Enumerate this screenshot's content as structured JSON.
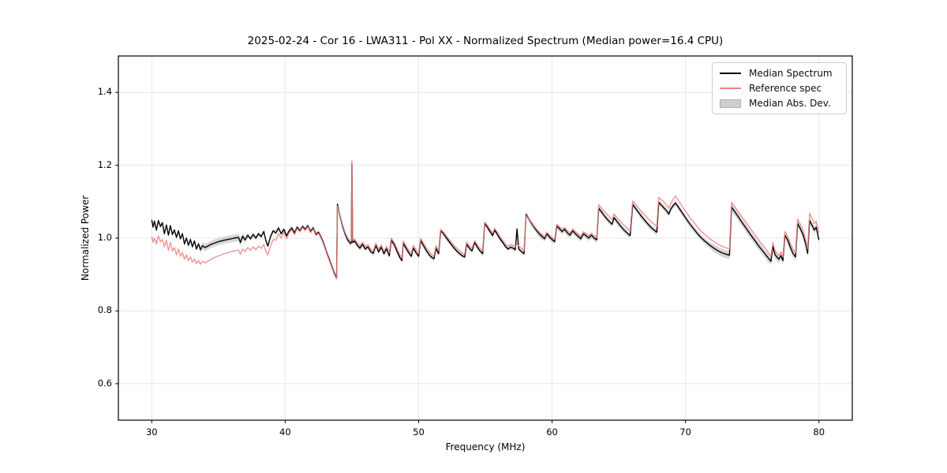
{
  "title": "2025-02-24 - Cor 16 - LWA311 - Pol XX - Normalized Spectrum (Median power=16.4 CPU)",
  "axes": {
    "xlabel": "Frequency (MHz)",
    "ylabel": "Normalized Power",
    "xlim": [
      27.5,
      82.5
    ],
    "ylim": [
      0.5,
      1.5
    ],
    "xticks": [
      {
        "v": 30,
        "label": "30"
      },
      {
        "v": 40,
        "label": "40"
      },
      {
        "v": 50,
        "label": "50"
      },
      {
        "v": 60,
        "label": "60"
      },
      {
        "v": 70,
        "label": "70"
      },
      {
        "v": 80,
        "label": "80"
      }
    ],
    "yticks": [
      {
        "v": 0.6,
        "label": "0.6"
      },
      {
        "v": 0.8,
        "label": "0.8"
      },
      {
        "v": 1.0,
        "label": "1.0"
      },
      {
        "v": 1.2,
        "label": "1.2"
      },
      {
        "v": 1.4,
        "label": "1.4"
      }
    ],
    "grid": true
  },
  "colors": {
    "background": "#ffffff",
    "grid": "#e7e7e7",
    "spine": "#000000",
    "median_line": "#000000",
    "reference_line": "#f08080",
    "band_fill": "#b0b0b0",
    "legend_patch_fill": "#cfcfcf",
    "legend_patch_edge": "#b0b0b0"
  },
  "legend": {
    "items": [
      {
        "label": "Median Spectrum",
        "type": "line",
        "color": "#000000"
      },
      {
        "label": "Reference spec",
        "type": "line",
        "color": "#f08080"
      },
      {
        "label": "Median Abs. Dev.",
        "type": "patch",
        "color": "#cfcfcf",
        "edge": "#b0b0b0"
      }
    ]
  },
  "chart_data": {
    "type": "line",
    "title": "2025-02-24 - Cor 16 - LWA311 - Pol XX - Normalized Spectrum (Median power=16.4 CPU)",
    "xlabel": "Frequency (MHz)",
    "ylabel": "Normalized Power",
    "xlim": [
      27.5,
      82.5
    ],
    "ylim": [
      0.5,
      1.5
    ],
    "grid": true,
    "legend_position": "upper right",
    "series_meta": [
      {
        "name": "Median Spectrum",
        "color": "#000000"
      },
      {
        "name": "Reference spec",
        "color": "#f08080"
      }
    ],
    "points_format": [
      "freq_mhz",
      "median_spectrum",
      "reference_spec"
    ],
    "points": [
      [
        30.0,
        1.05,
        1.005
      ],
      [
        30.1,
        1.03,
        0.988
      ],
      [
        30.2,
        1.046,
        1.0
      ],
      [
        30.35,
        1.022,
        0.984
      ],
      [
        30.5,
        1.048,
        1.006
      ],
      [
        30.65,
        1.032,
        0.99
      ],
      [
        30.8,
        1.042,
        0.996
      ],
      [
        30.95,
        1.012,
        0.976
      ],
      [
        31.1,
        1.036,
        0.994
      ],
      [
        31.25,
        1.008,
        0.966
      ],
      [
        31.4,
        1.034,
        0.988
      ],
      [
        31.55,
        1.01,
        0.964
      ],
      [
        31.7,
        1.022,
        0.974
      ],
      [
        31.85,
        1.002,
        0.954
      ],
      [
        32.0,
        1.02,
        0.97
      ],
      [
        32.15,
        0.998,
        0.95
      ],
      [
        32.3,
        1.012,
        0.96
      ],
      [
        32.45,
        0.984,
        0.942
      ],
      [
        32.6,
        1.0,
        0.954
      ],
      [
        32.75,
        0.98,
        0.938
      ],
      [
        32.9,
        0.996,
        0.948
      ],
      [
        33.05,
        0.976,
        0.934
      ],
      [
        33.2,
        0.992,
        0.942
      ],
      [
        33.35,
        0.97,
        0.93
      ],
      [
        33.5,
        0.984,
        0.938
      ],
      [
        33.65,
        0.968,
        0.928
      ],
      [
        33.8,
        0.979,
        0.936
      ],
      [
        34.0,
        0.974,
        0.932
      ],
      [
        34.3,
        0.98,
        0.939
      ],
      [
        34.6,
        0.985,
        0.945
      ],
      [
        35.0,
        0.99,
        0.951
      ],
      [
        35.4,
        0.994,
        0.957
      ],
      [
        35.8,
        0.997,
        0.961
      ],
      [
        36.2,
        1.0,
        0.965
      ],
      [
        36.5,
        1.002,
        0.967
      ],
      [
        36.65,
        0.988,
        0.956
      ],
      [
        36.8,
        1.005,
        0.97
      ],
      [
        37.0,
        0.995,
        0.963
      ],
      [
        37.2,
        1.008,
        0.974
      ],
      [
        37.4,
        0.998,
        0.966
      ],
      [
        37.6,
        1.01,
        0.976
      ],
      [
        37.8,
        1.0,
        0.968
      ],
      [
        38.0,
        1.012,
        0.978
      ],
      [
        38.2,
        1.004,
        0.972
      ],
      [
        38.4,
        1.018,
        0.982
      ],
      [
        38.55,
        0.994,
        0.964
      ],
      [
        38.7,
        0.978,
        0.954
      ],
      [
        38.9,
        1.004,
        0.978
      ],
      [
        39.1,
        1.02,
        0.996
      ],
      [
        39.3,
        1.014,
        0.994
      ],
      [
        39.5,
        1.028,
        1.012
      ],
      [
        39.7,
        1.012,
        1.0
      ],
      [
        39.9,
        1.024,
        1.016
      ],
      [
        40.1,
        1.006,
        0.998
      ],
      [
        40.3,
        1.02,
        1.014
      ],
      [
        40.5,
        1.028,
        1.023
      ],
      [
        40.7,
        1.014,
        1.009
      ],
      [
        40.9,
        1.03,
        1.026
      ],
      [
        41.1,
        1.02,
        1.017
      ],
      [
        41.3,
        1.032,
        1.029
      ],
      [
        41.5,
        1.024,
        1.021
      ],
      [
        41.7,
        1.034,
        1.031
      ],
      [
        41.9,
        1.018,
        1.015
      ],
      [
        42.1,
        1.028,
        1.025
      ],
      [
        42.3,
        1.01,
        1.007
      ],
      [
        42.5,
        1.016,
        1.013
      ],
      [
        42.7,
        1.002,
        0.999
      ],
      [
        42.9,
        0.984,
        0.981
      ],
      [
        43.1,
        0.962,
        0.959
      ],
      [
        43.3,
        0.942,
        0.939
      ],
      [
        43.5,
        0.922,
        0.919
      ],
      [
        43.7,
        0.902,
        0.899
      ],
      [
        43.85,
        0.89,
        0.888
      ],
      [
        43.92,
        1.093,
        1.088
      ],
      [
        44.1,
        1.062,
        1.064
      ],
      [
        44.3,
        1.032,
        1.036
      ],
      [
        44.5,
        1.01,
        1.014
      ],
      [
        44.7,
        0.994,
        0.999
      ],
      [
        44.9,
        0.985,
        0.991
      ],
      [
        44.96,
        0.987,
        0.993
      ],
      [
        45.0,
        1.205,
        1.213
      ],
      [
        45.06,
        0.988,
        0.994
      ],
      [
        45.2,
        0.992,
        0.998
      ],
      [
        45.4,
        0.98,
        0.987
      ],
      [
        45.6,
        0.972,
        0.979
      ],
      [
        45.8,
        0.983,
        0.989
      ],
      [
        46.0,
        0.97,
        0.977
      ],
      [
        46.2,
        0.976,
        0.982
      ],
      [
        46.4,
        0.963,
        0.97
      ],
      [
        46.6,
        0.958,
        0.965
      ],
      [
        46.8,
        0.98,
        0.986
      ],
      [
        47.0,
        0.962,
        0.969
      ],
      [
        47.2,
        0.975,
        0.981
      ],
      [
        47.4,
        0.957,
        0.964
      ],
      [
        47.6,
        0.971,
        0.977
      ],
      [
        47.8,
        0.951,
        0.959
      ],
      [
        47.95,
        0.994,
        1.0
      ],
      [
        48.2,
        0.98,
        0.986
      ],
      [
        48.4,
        0.962,
        0.97
      ],
      [
        48.6,
        0.946,
        0.954
      ],
      [
        48.75,
        0.938,
        0.946
      ],
      [
        48.85,
        0.986,
        0.992
      ],
      [
        49.05,
        0.972,
        0.979
      ],
      [
        49.25,
        0.96,
        0.968
      ],
      [
        49.45,
        0.95,
        0.958
      ],
      [
        49.6,
        0.973,
        0.98
      ],
      [
        49.8,
        0.96,
        0.968
      ],
      [
        50.0,
        0.95,
        0.958
      ],
      [
        50.15,
        0.993,
        0.999
      ],
      [
        50.35,
        0.98,
        0.987
      ],
      [
        50.55,
        0.967,
        0.975
      ],
      [
        50.75,
        0.956,
        0.964
      ],
      [
        50.95,
        0.948,
        0.956
      ],
      [
        51.15,
        0.943,
        0.951
      ],
      [
        51.3,
        0.972,
        0.979
      ],
      [
        51.5,
        0.957,
        0.965
      ],
      [
        51.65,
        1.02,
        1.024
      ],
      [
        51.85,
        1.013,
        1.017
      ],
      [
        52.05,
        1.002,
        1.007
      ],
      [
        52.25,
        0.992,
        0.998
      ],
      [
        52.45,
        0.982,
        0.989
      ],
      [
        52.65,
        0.973,
        0.98
      ],
      [
        52.85,
        0.965,
        0.973
      ],
      [
        53.05,
        0.958,
        0.966
      ],
      [
        53.25,
        0.952,
        0.96
      ],
      [
        53.45,
        0.948,
        0.956
      ],
      [
        53.6,
        0.983,
        0.989
      ],
      [
        53.8,
        0.972,
        0.979
      ],
      [
        54.0,
        0.965,
        0.972
      ],
      [
        54.2,
        0.988,
        0.993
      ],
      [
        54.4,
        0.975,
        0.981
      ],
      [
        54.6,
        0.965,
        0.972
      ],
      [
        54.8,
        0.957,
        0.965
      ],
      [
        54.95,
        1.04,
        1.044
      ],
      [
        55.15,
        1.03,
        1.035
      ],
      [
        55.35,
        1.018,
        1.024
      ],
      [
        55.55,
        1.007,
        1.013
      ],
      [
        55.7,
        1.022,
        1.027
      ],
      [
        55.9,
        1.01,
        1.016
      ],
      [
        56.1,
        0.998,
        1.004
      ],
      [
        56.3,
        0.988,
        0.994
      ],
      [
        56.5,
        0.977,
        0.984
      ],
      [
        56.7,
        0.97,
        0.977
      ],
      [
        56.9,
        0.975,
        0.982
      ],
      [
        57.1,
        0.972,
        0.979
      ],
      [
        57.25,
        0.968,
        0.976
      ],
      [
        57.37,
        1.025,
        0.984
      ],
      [
        57.5,
        0.97,
        0.978
      ],
      [
        57.7,
        0.963,
        0.972
      ],
      [
        57.9,
        0.957,
        0.966
      ],
      [
        58.05,
        1.065,
        1.062
      ],
      [
        58.25,
        1.053,
        1.053
      ],
      [
        58.45,
        1.041,
        1.043
      ],
      [
        58.65,
        1.03,
        1.033
      ],
      [
        58.85,
        1.02,
        1.024
      ],
      [
        59.05,
        1.011,
        1.015
      ],
      [
        59.25,
        1.004,
        1.009
      ],
      [
        59.45,
        0.998,
        1.003
      ],
      [
        59.6,
        1.012,
        1.016
      ],
      [
        59.8,
        1.003,
        1.008
      ],
      [
        60.0,
        0.996,
        1.001
      ],
      [
        60.2,
        0.99,
        0.996
      ],
      [
        60.35,
        1.033,
        1.038
      ],
      [
        60.55,
        1.026,
        1.031
      ],
      [
        60.75,
        1.018,
        1.024
      ],
      [
        60.95,
        1.024,
        1.029
      ],
      [
        61.15,
        1.014,
        1.02
      ],
      [
        61.35,
        1.008,
        1.014
      ],
      [
        61.55,
        1.02,
        1.025
      ],
      [
        61.75,
        1.012,
        1.018
      ],
      [
        61.95,
        1.005,
        1.011
      ],
      [
        62.15,
        0.998,
        1.004
      ],
      [
        62.35,
        1.012,
        1.017
      ],
      [
        62.55,
        1.006,
        1.012
      ],
      [
        62.75,
        1.0,
        1.006
      ],
      [
        62.95,
        1.008,
        1.013
      ],
      [
        63.15,
        1.0,
        1.006
      ],
      [
        63.35,
        0.995,
        1.001
      ],
      [
        63.5,
        1.082,
        1.092
      ],
      [
        63.7,
        1.072,
        1.083
      ],
      [
        63.9,
        1.062,
        1.074
      ],
      [
        64.1,
        1.053,
        1.066
      ],
      [
        64.3,
        1.045,
        1.058
      ],
      [
        64.5,
        1.038,
        1.051
      ],
      [
        64.65,
        1.056,
        1.066
      ],
      [
        64.85,
        1.046,
        1.057
      ],
      [
        65.05,
        1.037,
        1.049
      ],
      [
        65.25,
        1.028,
        1.041
      ],
      [
        65.45,
        1.02,
        1.033
      ],
      [
        65.65,
        1.013,
        1.026
      ],
      [
        65.85,
        1.007,
        1.02
      ],
      [
        66.05,
        1.092,
        1.102
      ],
      [
        66.25,
        1.082,
        1.093
      ],
      [
        66.45,
        1.072,
        1.084
      ],
      [
        66.65,
        1.062,
        1.075
      ],
      [
        66.85,
        1.053,
        1.067
      ],
      [
        67.05,
        1.044,
        1.059
      ],
      [
        67.25,
        1.036,
        1.051
      ],
      [
        67.45,
        1.028,
        1.044
      ],
      [
        67.65,
        1.022,
        1.038
      ],
      [
        67.85,
        1.016,
        1.032
      ],
      [
        68.0,
        1.098,
        1.112
      ],
      [
        68.2,
        1.09,
        1.105
      ],
      [
        68.4,
        1.082,
        1.098
      ],
      [
        68.6,
        1.074,
        1.09
      ],
      [
        68.75,
        1.066,
        1.082
      ],
      [
        68.9,
        1.08,
        1.095
      ],
      [
        69.1,
        1.09,
        1.108
      ],
      [
        69.25,
        1.096,
        1.115
      ],
      [
        69.45,
        1.086,
        1.104
      ],
      [
        69.7,
        1.072,
        1.09
      ],
      [
        70.0,
        1.056,
        1.074
      ],
      [
        70.3,
        1.04,
        1.058
      ],
      [
        70.6,
        1.026,
        1.044
      ],
      [
        70.9,
        1.012,
        1.03
      ],
      [
        71.2,
        1.0,
        1.018
      ],
      [
        71.5,
        0.99,
        1.008
      ],
      [
        71.8,
        0.981,
        0.999
      ],
      [
        72.1,
        0.973,
        0.991
      ],
      [
        72.4,
        0.966,
        0.984
      ],
      [
        72.7,
        0.96,
        0.978
      ],
      [
        73.0,
        0.956,
        0.974
      ],
      [
        73.3,
        0.953,
        0.97
      ],
      [
        73.45,
        1.085,
        1.098
      ],
      [
        73.7,
        1.072,
        1.086
      ],
      [
        74.0,
        1.056,
        1.07
      ],
      [
        74.3,
        1.04,
        1.055
      ],
      [
        74.6,
        1.024,
        1.04
      ],
      [
        74.9,
        1.008,
        1.024
      ],
      [
        75.2,
        0.993,
        1.009
      ],
      [
        75.5,
        0.978,
        0.994
      ],
      [
        75.8,
        0.964,
        0.98
      ],
      [
        76.1,
        0.95,
        0.966
      ],
      [
        76.4,
        0.936,
        0.95
      ],
      [
        76.55,
        0.978,
        0.988
      ],
      [
        76.7,
        0.955,
        0.966
      ],
      [
        76.85,
        0.948,
        0.958
      ],
      [
        77.0,
        0.942,
        0.952
      ],
      [
        77.15,
        0.952,
        0.962
      ],
      [
        77.3,
        0.938,
        0.948
      ],
      [
        77.45,
        1.008,
        1.018
      ],
      [
        77.65,
        0.995,
        1.006
      ],
      [
        77.85,
        0.975,
        0.986
      ],
      [
        78.05,
        0.958,
        0.97
      ],
      [
        78.25,
        0.948,
        0.96
      ],
      [
        78.4,
        1.04,
        1.052
      ],
      [
        78.6,
        1.026,
        1.038
      ],
      [
        78.8,
        1.01,
        1.022
      ],
      [
        79.0,
        0.985,
        0.998
      ],
      [
        79.15,
        0.958,
        0.97
      ],
      [
        79.3,
        1.048,
        1.068
      ],
      [
        79.5,
        1.034,
        1.052
      ],
      [
        79.65,
        1.022,
        1.04
      ],
      [
        79.8,
        1.03,
        1.046
      ],
      [
        79.9,
        1.012,
        1.03
      ],
      [
        80.0,
        0.995,
        1.015
      ]
    ],
    "mad_band": {
      "label": "Median Abs. Dev.",
      "applies_to": "median_spectrum",
      "half_width_regions": [
        [
          30.0,
          33.5,
          0.006
        ],
        [
          33.5,
          37.0,
          0.01
        ],
        [
          37.0,
          43.8,
          0.006
        ],
        [
          43.8,
          58.0,
          0.006
        ],
        [
          58.0,
          72.0,
          0.008
        ],
        [
          72.0,
          78.5,
          0.011
        ],
        [
          78.5,
          80.0,
          0.009
        ]
      ]
    }
  }
}
